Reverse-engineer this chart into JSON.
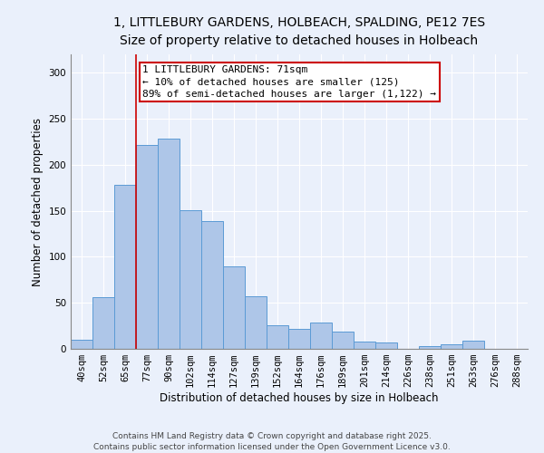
{
  "title_line1": "1, LITTLEBURY GARDENS, HOLBEACH, SPALDING, PE12 7ES",
  "title_line2": "Size of property relative to detached houses in Holbeach",
  "xlabel": "Distribution of detached houses by size in Holbeach",
  "ylabel": "Number of detached properties",
  "categories": [
    "40sqm",
    "52sqm",
    "65sqm",
    "77sqm",
    "90sqm",
    "102sqm",
    "114sqm",
    "127sqm",
    "139sqm",
    "152sqm",
    "164sqm",
    "176sqm",
    "189sqm",
    "201sqm",
    "214sqm",
    "226sqm",
    "238sqm",
    "251sqm",
    "263sqm",
    "276sqm",
    "288sqm"
  ],
  "values": [
    10,
    56,
    178,
    222,
    228,
    151,
    139,
    90,
    57,
    26,
    22,
    29,
    19,
    8,
    7,
    0,
    3,
    5,
    9,
    0,
    0
  ],
  "bar_color": "#aec6e8",
  "bar_edge_color": "#5b9bd5",
  "annotation_box_text": "1 LITTLEBURY GARDENS: 71sqm\n← 10% of detached houses are smaller (125)\n89% of semi-detached houses are larger (1,122) →",
  "annotation_box_color": "#ffffff",
  "annotation_box_edge_color": "#cc0000",
  "annotation_line_color": "#cc0000",
  "ylim": [
    0,
    320
  ],
  "yticks": [
    0,
    50,
    100,
    150,
    200,
    250,
    300
  ],
  "footer_text": "Contains HM Land Registry data © Crown copyright and database right 2025.\nContains public sector information licensed under the Open Government Licence v3.0.",
  "background_color": "#eaf0fb",
  "plot_background_color": "#eaf0fb",
  "grid_color": "#d0ddf0",
  "title_fontsize": 10,
  "subtitle_fontsize": 9,
  "axis_label_fontsize": 8.5,
  "tick_fontsize": 7.5,
  "annotation_fontsize": 8,
  "footer_fontsize": 6.5,
  "line_x_index": 2.5
}
